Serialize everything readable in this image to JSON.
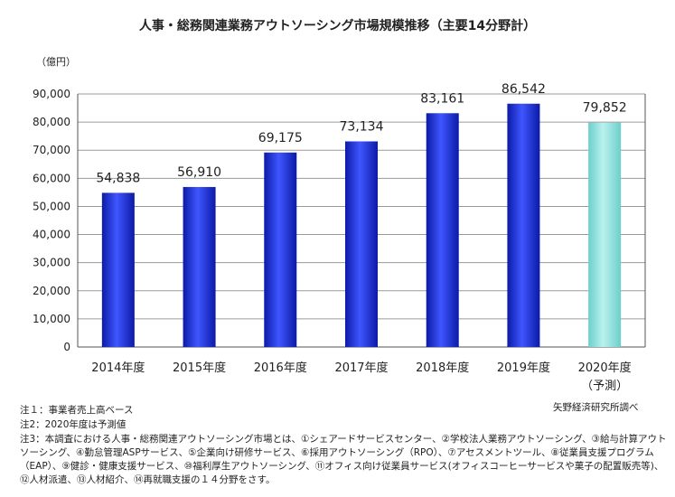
{
  "chart_data": {
    "type": "bar",
    "title": "人事・総務関連業務アウトソーシング市場規模推移（主要14分野計）",
    "unit_label": "（億円）",
    "categories": [
      "2014年度",
      "2015年度",
      "2016年度",
      "2017年度",
      "2018年度",
      "2019年度",
      "2020年度"
    ],
    "category_sublabels": [
      "",
      "",
      "",
      "",
      "",
      "",
      "（予測）"
    ],
    "values": [
      54838,
      56910,
      69175,
      73134,
      83161,
      86542,
      79852
    ],
    "value_labels": [
      "54,838",
      "56,910",
      "69,175",
      "73,134",
      "83,161",
      "86,542",
      "79,852"
    ],
    "forecast": [
      false,
      false,
      false,
      false,
      false,
      false,
      true
    ],
    "ylim": [
      0,
      90000
    ],
    "yticks": [
      0,
      10000,
      20000,
      30000,
      40000,
      50000,
      60000,
      70000,
      80000,
      90000
    ],
    "ytick_labels": [
      "0",
      "10,000",
      "20,000",
      "30,000",
      "40,000",
      "50,000",
      "60,000",
      "70,000",
      "80,000",
      "90,000"
    ],
    "grid": true,
    "colors": {
      "actual": "#1a2fd6",
      "forecast": "#8fe0dc"
    }
  },
  "notes": {
    "note1": "注１：事業者売上高ベース",
    "note2": "注2：2020年度は予測値",
    "note3_line1": "注3：本調査における人事・総務関連アウトソーシング市場とは、①シェアードサービスセンター、②学校法人業務アウトソーシング、③給与計算アウト",
    "note3_line2": "ソーシング、④勤怠管理ASPサービス、⑤企業向け研修サービス、⑥採用アウトソーシング（RPO）、⑦アセスメントツール、⑧従業員支援プログラム",
    "note3_line3": "（EAP）、⑨健診・健康支援サービス、⑩福利厚生アウトソーシング、⑪オフィス向け従業員サービス(オフィスコーヒーサービスや菓子の配置販売等)、",
    "note3_line4": "⑫人材派遣、⑬人材紹介、⑭再就職支援の１４分野をさす。"
  },
  "source": "矢野経済研究所調べ"
}
